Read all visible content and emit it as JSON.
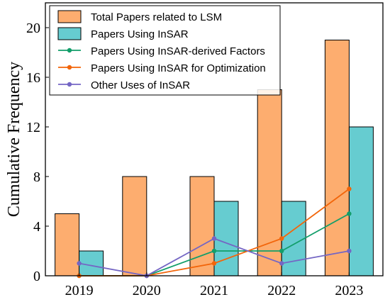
{
  "chart_data": {
    "type": "bar",
    "title": "",
    "xlabel": "",
    "ylabel": "Cumulative Frequency",
    "categories": [
      "2019",
      "2020",
      "2021",
      "2022",
      "2023"
    ],
    "ylim": [
      0,
      22
    ],
    "yticks": [
      0,
      4,
      8,
      12,
      16,
      20
    ],
    "grid": false,
    "legend_position": "top-left",
    "bar_series": [
      {
        "name": "Total Papers related to LSM",
        "values": [
          5,
          8,
          8,
          15,
          19
        ],
        "color": "#fdad6f"
      },
      {
        "name": "Papers Using InSAR",
        "values": [
          2,
          0,
          6,
          6,
          12
        ],
        "color": "#66ccd0"
      }
    ],
    "line_series": [
      {
        "name": "Papers Using InSAR-derived Factors",
        "values": [
          0,
          0,
          2,
          2,
          5
        ],
        "color": "#129e6a"
      },
      {
        "name": "Papers Using InSAR for Optimization",
        "values": [
          0,
          0,
          1,
          3,
          7
        ],
        "color": "#f2650a"
      },
      {
        "name": "Other Uses of InSAR",
        "values": [
          1,
          0,
          3,
          1,
          2
        ],
        "color": "#7466c4"
      }
    ]
  }
}
